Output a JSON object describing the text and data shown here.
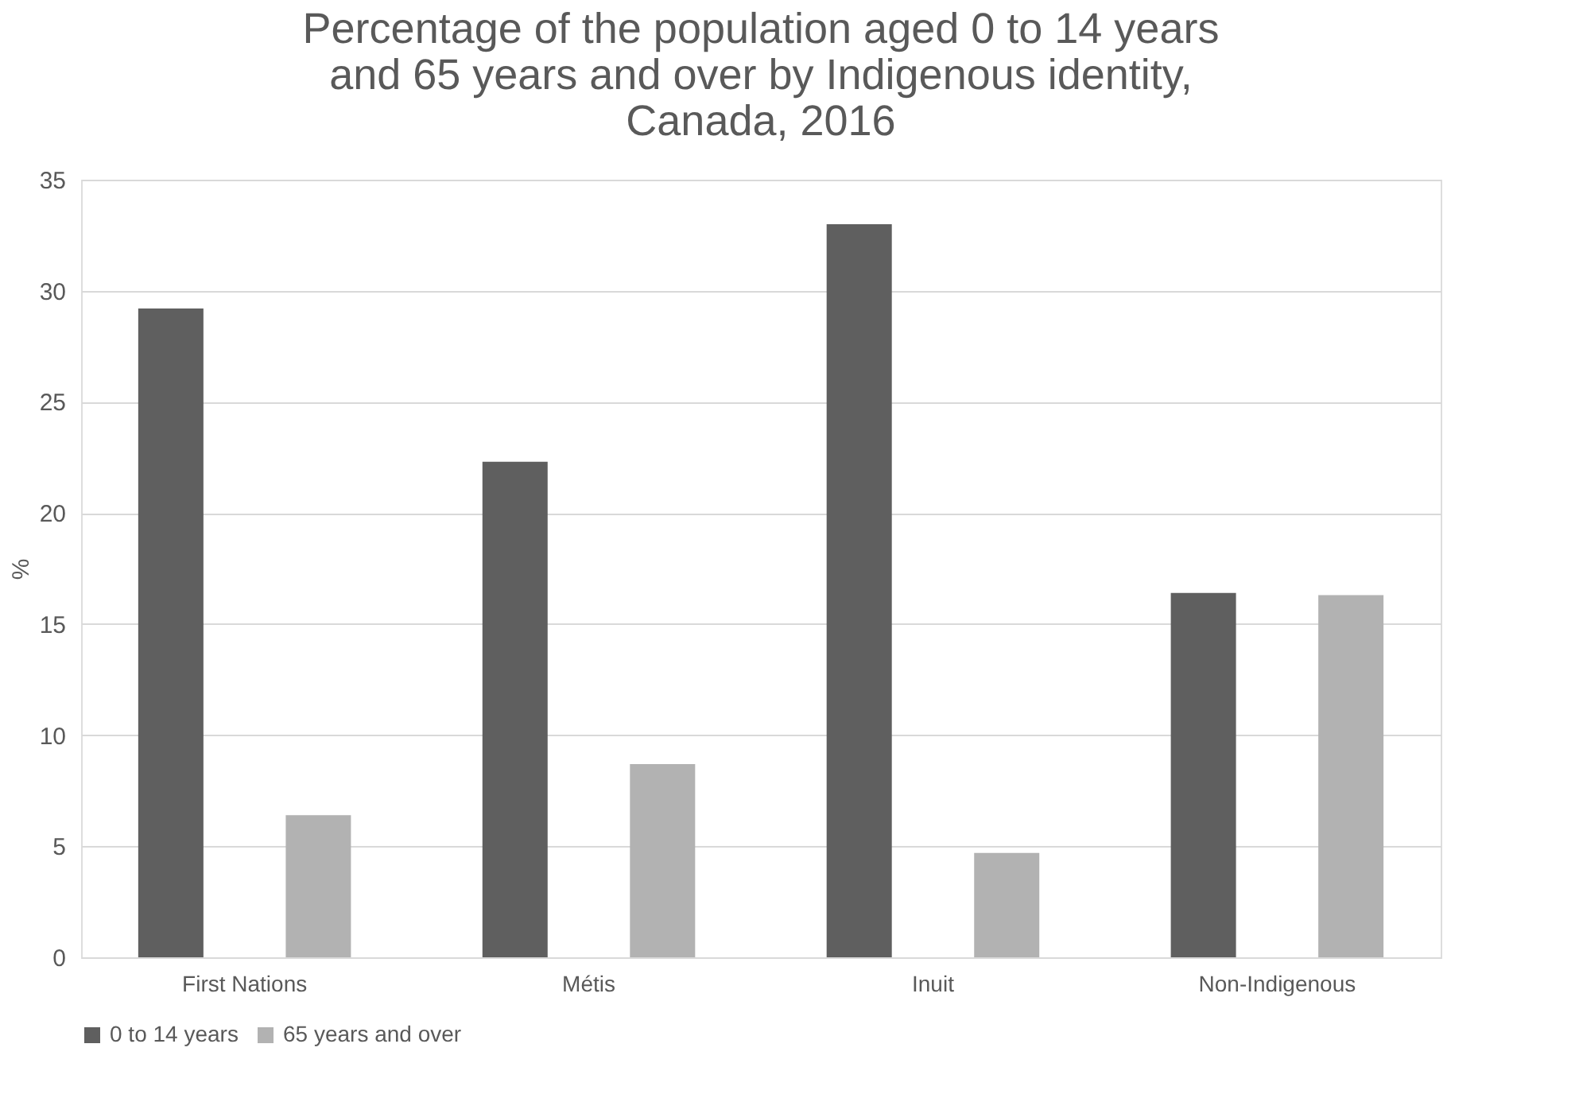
{
  "chart_data": {
    "type": "bar",
    "title": [
      "Percentage of the population aged 0 to 14 years",
      "and 65 years and over by Indigenous identity,",
      "Canada, 2016"
    ],
    "categories": [
      "First Nations",
      "Métis",
      "Inuit",
      "Non-Indigenous"
    ],
    "series": [
      {
        "name": "0 to 14 years",
        "color": "#5f5f5f",
        "values": [
          29.2,
          22.3,
          33.0,
          16.4
        ]
      },
      {
        "name": "65 years and over",
        "color": "#b2b2b2",
        "values": [
          6.4,
          8.7,
          4.7,
          16.3
        ]
      }
    ],
    "ylabel": "%",
    "ylim": [
      0,
      35
    ],
    "yticks": [
      0,
      5,
      10,
      15,
      20,
      25,
      30,
      35
    ],
    "grid": "y",
    "legend": "bottom"
  }
}
